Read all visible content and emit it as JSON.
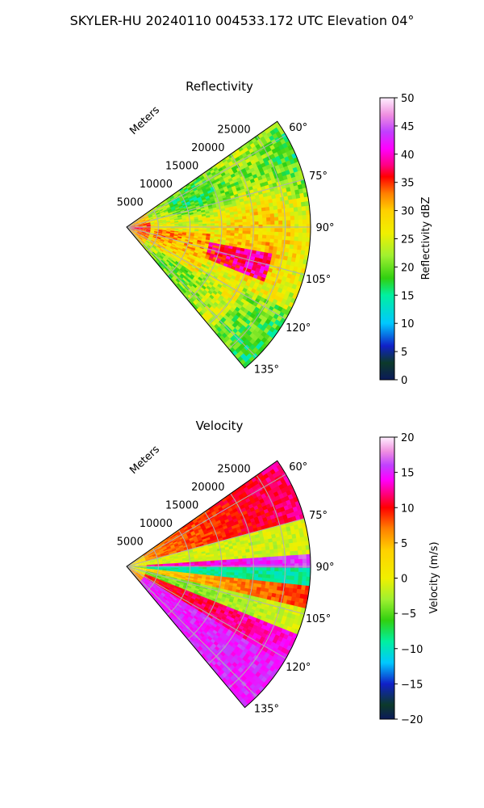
{
  "figure": {
    "title": "SKYLER-HU  20240110  004533.172 UTC Elevation 04°"
  },
  "chart_data": [
    {
      "type": "heatmap",
      "title": "Reflectivity",
      "field": "reflectivity",
      "radial_label": "Meters",
      "range_ticks": [
        "5000",
        "10000",
        "15000",
        "20000",
        "25000"
      ],
      "range_tick_values": [
        5000,
        10000,
        15000,
        20000,
        25000
      ],
      "range_max": 29000,
      "azimuth_limits": [
        55,
        140
      ],
      "azimuth_ticks": [
        "60°",
        "75°",
        "90°",
        "105°",
        "120°",
        "135°"
      ],
      "azimuth_tick_values": [
        60,
        75,
        90,
        105,
        120,
        135
      ],
      "grid": true,
      "colorbar": {
        "label": "Reflectivity dBZ",
        "min": 0,
        "max": 50,
        "ticks": [
          "0",
          "5",
          "10",
          "15",
          "20",
          "25",
          "30",
          "35",
          "40",
          "45",
          "50"
        ],
        "tick_values": [
          0,
          5,
          10,
          15,
          20,
          25,
          30,
          35,
          40,
          45,
          50
        ],
        "colormap_stops": [
          {
            "v": 0,
            "c": "#0b1a5a"
          },
          {
            "v": 3,
            "c": "#0c3a2a"
          },
          {
            "v": 6,
            "c": "#1020c8"
          },
          {
            "v": 10,
            "c": "#00c8ff"
          },
          {
            "v": 15,
            "c": "#00f0a0"
          },
          {
            "v": 18,
            "c": "#30d010"
          },
          {
            "v": 22,
            "c": "#a0f030"
          },
          {
            "v": 26,
            "c": "#f0f000"
          },
          {
            "v": 30,
            "c": "#ffd000"
          },
          {
            "v": 33,
            "c": "#ff8000"
          },
          {
            "v": 36,
            "c": "#ff0000"
          },
          {
            "v": 38,
            "c": "#ff0080"
          },
          {
            "v": 41,
            "c": "#ff00ff"
          },
          {
            "v": 44,
            "c": "#c040ff"
          },
          {
            "v": 47,
            "c": "#f090e0"
          },
          {
            "v": 50,
            "c": "#fff0ff"
          }
        ]
      },
      "typical_values": [
        22,
        25,
        27,
        30,
        33,
        37
      ]
    },
    {
      "type": "heatmap",
      "title": "Velocity",
      "field": "velocity",
      "radial_label": "Meters",
      "range_ticks": [
        "5000",
        "10000",
        "15000",
        "20000",
        "25000"
      ],
      "range_tick_values": [
        5000,
        10000,
        15000,
        20000,
        25000
      ],
      "range_max": 29000,
      "azimuth_limits": [
        55,
        140
      ],
      "azimuth_ticks": [
        "60°",
        "75°",
        "90°",
        "105°",
        "120°",
        "135°"
      ],
      "azimuth_tick_values": [
        60,
        75,
        90,
        105,
        120,
        135
      ],
      "grid": true,
      "colorbar": {
        "label": "Velocity (m/s)",
        "min": -20,
        "max": 20,
        "ticks": [
          "−20",
          "−15",
          "−10",
          "−5",
          "0",
          "5",
          "10",
          "15",
          "20"
        ],
        "tick_values": [
          -20,
          -15,
          -10,
          -5,
          0,
          5,
          10,
          15,
          20
        ],
        "colormap_stops": [
          {
            "v": -20,
            "c": "#0b1a5a"
          },
          {
            "v": -18,
            "c": "#0c3a2a"
          },
          {
            "v": -15,
            "c": "#1020c8"
          },
          {
            "v": -12,
            "c": "#00c8ff"
          },
          {
            "v": -9,
            "c": "#00f0a0"
          },
          {
            "v": -6,
            "c": "#30d010"
          },
          {
            "v": -3,
            "c": "#a0f030"
          },
          {
            "v": 0,
            "c": "#f0f000"
          },
          {
            "v": 4,
            "c": "#ffd000"
          },
          {
            "v": 7,
            "c": "#ff8000"
          },
          {
            "v": 10,
            "c": "#ff0000"
          },
          {
            "v": 12,
            "c": "#ff0080"
          },
          {
            "v": 14,
            "c": "#ff00ff"
          },
          {
            "v": 16,
            "c": "#c040ff"
          },
          {
            "v": 18,
            "c": "#f090e0"
          },
          {
            "v": 20,
            "c": "#fff0ff"
          }
        ]
      },
      "typical_values": [
        -10,
        -4,
        0,
        5,
        9,
        15
      ]
    }
  ]
}
